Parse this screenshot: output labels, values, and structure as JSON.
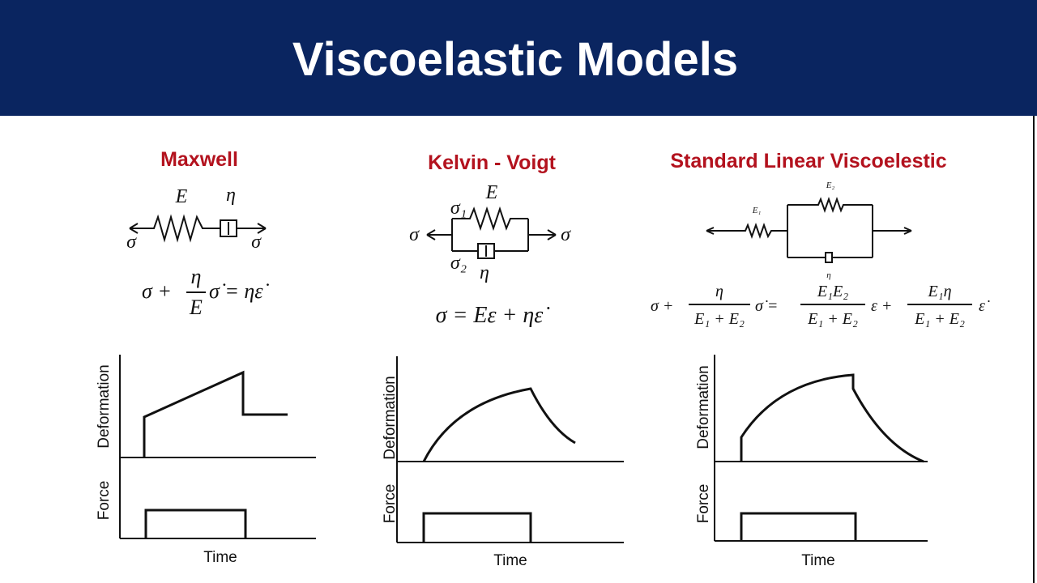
{
  "header": {
    "title": "Viscoelastic Models"
  },
  "models": [
    {
      "name": "Maxwell",
      "diagram_labels": [
        "E",
        "η",
        "σ",
        "σ"
      ],
      "equation": [
        "σ +",
        {
          "num": "η",
          "den": "E"
        },
        "σ̇ = ηε̇"
      ],
      "graphs": {
        "top_axis": "Deformation",
        "bottom_axis": "Force",
        "x_axis": "Time"
      }
    },
    {
      "name": "Kelvin - Voigt",
      "diagram_labels": [
        "σ",
        "σ₁",
        "E",
        "σ₂",
        "η",
        "σ"
      ],
      "equation": [
        "σ = Eε + ηε̇"
      ],
      "graphs": {
        "top_axis": "Deformation",
        "bottom_axis": "Force",
        "x_axis": "Time"
      }
    },
    {
      "name": "Standard Linear Viscoelestic",
      "diagram_labels": [
        "E₁",
        "E₂",
        "η"
      ],
      "equation": [
        "σ +",
        {
          "num": "η",
          "den": "E₁ + E₂"
        },
        "σ̇ =",
        {
          "num": "E₁E₂",
          "den": "E₁ + E₂"
        },
        "ε +",
        {
          "num": "E₁η",
          "den": "E₁ + E₂"
        },
        "ε̇"
      ],
      "graphs": {
        "top_axis": "Deformation",
        "bottom_axis": "Force",
        "x_axis": "Time"
      }
    }
  ]
}
